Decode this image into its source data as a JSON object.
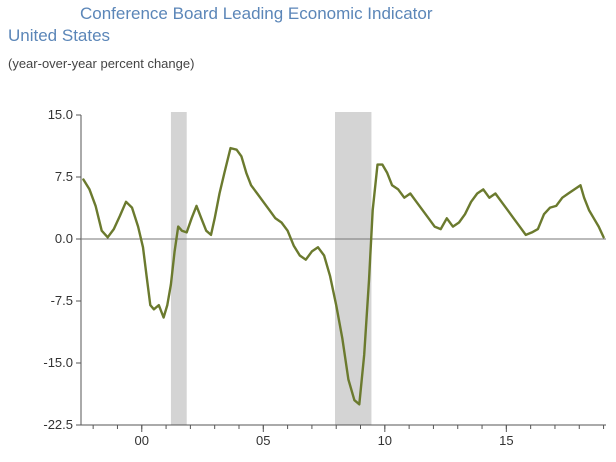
{
  "chart_data": {
    "type": "line",
    "title": "Conference Board Leading Economic Indicator",
    "subtitle": "United States",
    "ylabel": "(year-over-year percent change)",
    "xlabel": "",
    "xlim": [
      1997.5,
      2019.1
    ],
    "ylim": [
      -22.5,
      15.0
    ],
    "y_ticks": [
      "15.0",
      "7.5",
      "0.0",
      "-7.5",
      "-15.0",
      "-22.5"
    ],
    "y_tick_values": [
      15.0,
      7.5,
      0.0,
      -7.5,
      -15.0,
      -22.5
    ],
    "x_ticks": [
      "00",
      "05",
      "10",
      "15"
    ],
    "x_tick_values": [
      2000.0,
      2005.0,
      2010.0,
      2015.0
    ],
    "grid": false,
    "zero_line": true,
    "recessions": [
      {
        "start": 2001.2,
        "end": 2001.85
      },
      {
        "start": 2007.95,
        "end": 2009.45
      }
    ],
    "series": [
      {
        "color": "#6b7a2e",
        "x": [
          1997.6,
          1997.85,
          1998.1,
          1998.35,
          1998.6,
          1998.85,
          1999.1,
          1999.35,
          1999.6,
          1999.85,
          2000.05,
          2000.2,
          2000.35,
          2000.5,
          2000.7,
          2000.9,
          2001.05,
          2001.2,
          2001.35,
          2001.5,
          2001.65,
          2001.85,
          2002.05,
          2002.25,
          2002.45,
          2002.65,
          2002.85,
          2003.0,
          2003.2,
          2003.4,
          2003.65,
          2003.9,
          2004.1,
          2004.3,
          2004.5,
          2004.75,
          2005.0,
          2005.25,
          2005.5,
          2005.75,
          2006.0,
          2006.25,
          2006.5,
          2006.75,
          2007.0,
          2007.25,
          2007.5,
          2007.75,
          2008.0,
          2008.25,
          2008.5,
          2008.75,
          2008.95,
          2009.15,
          2009.35,
          2009.5,
          2009.7,
          2009.9,
          2010.1,
          2010.3,
          2010.55,
          2010.8,
          2011.05,
          2011.3,
          2011.55,
          2011.8,
          2012.05,
          2012.3,
          2012.55,
          2012.8,
          2013.05,
          2013.3,
          2013.55,
          2013.8,
          2014.05,
          2014.3,
          2014.55,
          2014.8,
          2015.05,
          2015.3,
          2015.55,
          2015.8,
          2016.05,
          2016.3,
          2016.55,
          2016.8,
          2017.05,
          2017.3,
          2017.55,
          2017.8,
          2018.05,
          2018.2,
          2018.4,
          2018.6,
          2018.8,
          2019.0
        ],
        "y": [
          7.2,
          6.0,
          4.0,
          1.0,
          0.2,
          1.2,
          2.8,
          4.5,
          3.8,
          1.5,
          -1.0,
          -4.5,
          -8.0,
          -8.5,
          -8.0,
          -9.5,
          -8.0,
          -5.5,
          -1.5,
          1.5,
          1.0,
          0.8,
          2.5,
          4.0,
          2.5,
          1.0,
          0.5,
          2.5,
          5.5,
          8.0,
          11.0,
          10.8,
          10.0,
          8.0,
          6.5,
          5.5,
          4.5,
          3.5,
          2.5,
          2.0,
          1.0,
          -0.8,
          -2.0,
          -2.5,
          -1.5,
          -1.0,
          -2.0,
          -4.5,
          -8.0,
          -12.0,
          -17.0,
          -19.5,
          -20.0,
          -14.0,
          -5.0,
          3.5,
          9.0,
          9.0,
          8.0,
          6.5,
          6.0,
          5.0,
          5.5,
          4.5,
          3.5,
          2.5,
          1.5,
          1.2,
          2.5,
          1.5,
          2.0,
          3.0,
          4.5,
          5.5,
          6.0,
          5.0,
          5.5,
          4.5,
          3.5,
          2.5,
          1.5,
          0.5,
          0.8,
          1.2,
          3.0,
          3.8,
          4.0,
          5.0,
          5.5,
          6.0,
          6.5,
          5.0,
          3.5,
          2.5,
          1.5,
          0.2
        ]
      }
    ]
  }
}
